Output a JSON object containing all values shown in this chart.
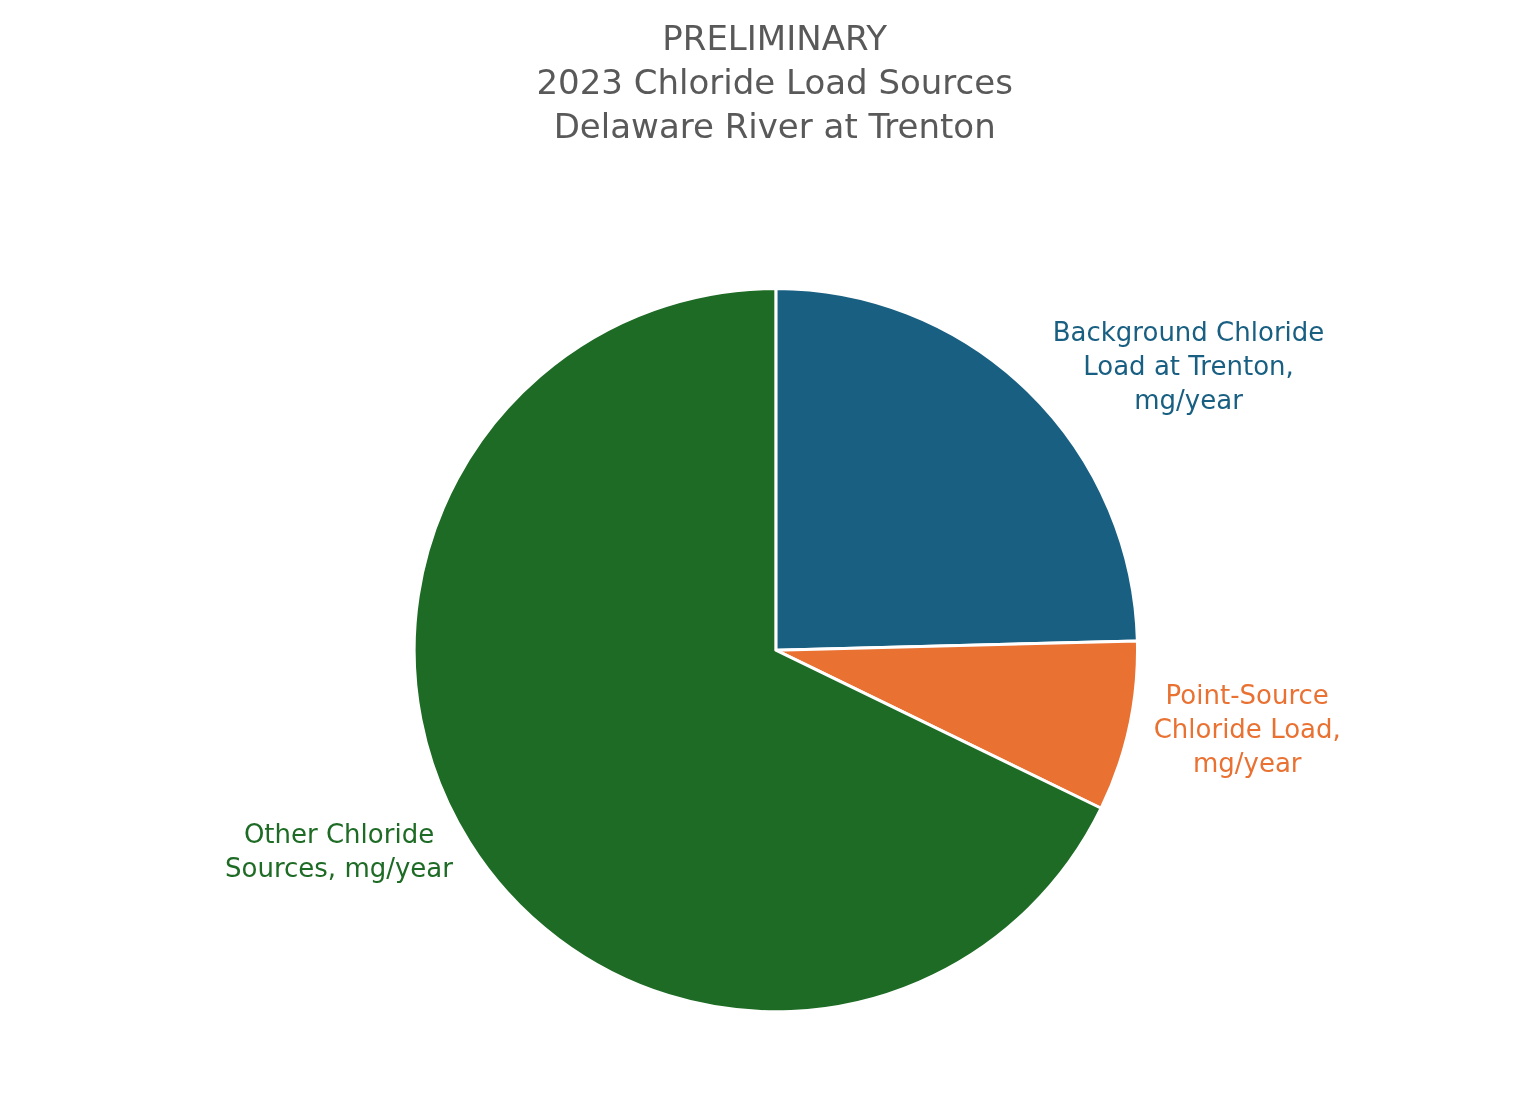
{
  "chart_data": {
    "type": "pie",
    "title": "PRELIMINARY\n2023 Chloride Load Sources\nDelaware River at Trenton",
    "categories": [
      "Background Chloride Load at Trenton, mg/year",
      "Point-Source Chloride Load, mg/year",
      "Other Chloride Sources, mg/year"
    ],
    "values": [
      24.6,
      7.6,
      67.8
    ],
    "colors": [
      "#185f82",
      "#e97132",
      "#1d6b24"
    ],
    "legend": false
  }
}
